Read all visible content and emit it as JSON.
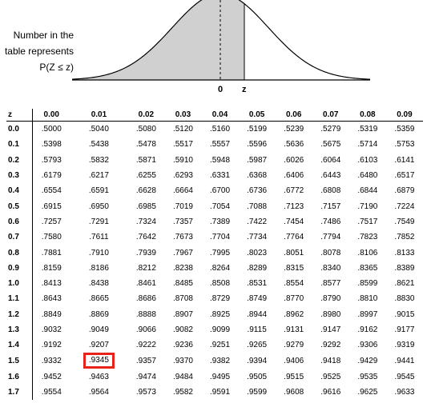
{
  "figure": {
    "caption_lines": [
      "Number in the",
      "table represents",
      "P(Z ≤ z)"
    ],
    "axis_zero": "0",
    "axis_z": "z",
    "shade_color": "#d0d0d0",
    "highlight_color": "#e8231a"
  },
  "table": {
    "header": [
      "z",
      "0.00",
      "0.01",
      "0.02",
      "0.03",
      "0.04",
      "0.05",
      "0.06",
      "0.07",
      "0.08",
      "0.09"
    ],
    "rows": [
      [
        "0.0",
        ".5000",
        ".5040",
        ".5080",
        ".5120",
        ".5160",
        ".5199",
        ".5239",
        ".5279",
        ".5319",
        ".5359"
      ],
      [
        "0.1",
        ".5398",
        ".5438",
        ".5478",
        ".5517",
        ".5557",
        ".5596",
        ".5636",
        ".5675",
        ".5714",
        ".5753"
      ],
      [
        "0.2",
        ".5793",
        ".5832",
        ".5871",
        ".5910",
        ".5948",
        ".5987",
        ".6026",
        ".6064",
        ".6103",
        ".6141"
      ],
      [
        "0.3",
        ".6179",
        ".6217",
        ".6255",
        ".6293",
        ".6331",
        ".6368",
        ".6406",
        ".6443",
        ".6480",
        ".6517"
      ],
      [
        "0.4",
        ".6554",
        ".6591",
        ".6628",
        ".6664",
        ".6700",
        ".6736",
        ".6772",
        ".6808",
        ".6844",
        ".6879"
      ],
      [
        "0.5",
        ".6915",
        ".6950",
        ".6985",
        ".7019",
        ".7054",
        ".7088",
        ".7123",
        ".7157",
        ".7190",
        ".7224"
      ],
      [
        "0.6",
        ".7257",
        ".7291",
        ".7324",
        ".7357",
        ".7389",
        ".7422",
        ".7454",
        ".7486",
        ".7517",
        ".7549"
      ],
      [
        "0.7",
        ".7580",
        ".7611",
        ".7642",
        ".7673",
        ".7704",
        ".7734",
        ".7764",
        ".7794",
        ".7823",
        ".7852"
      ],
      [
        "0.8",
        ".7881",
        ".7910",
        ".7939",
        ".7967",
        ".7995",
        ".8023",
        ".8051",
        ".8078",
        ".8106",
        ".8133"
      ],
      [
        "0.9",
        ".8159",
        ".8186",
        ".8212",
        ".8238",
        ".8264",
        ".8289",
        ".8315",
        ".8340",
        ".8365",
        ".8389"
      ],
      [
        "1.0",
        ".8413",
        ".8438",
        ".8461",
        ".8485",
        ".8508",
        ".8531",
        ".8554",
        ".8577",
        ".8599",
        ".8621"
      ],
      [
        "1.1",
        ".8643",
        ".8665",
        ".8686",
        ".8708",
        ".8729",
        ".8749",
        ".8770",
        ".8790",
        ".8810",
        ".8830"
      ],
      [
        "1.2",
        ".8849",
        ".8869",
        ".8888",
        ".8907",
        ".8925",
        ".8944",
        ".8962",
        ".8980",
        ".8997",
        ".9015"
      ],
      [
        "1.3",
        ".9032",
        ".9049",
        ".9066",
        ".9082",
        ".9099",
        ".9115",
        ".9131",
        ".9147",
        ".9162",
        ".9177"
      ],
      [
        "1.4",
        ".9192",
        ".9207",
        ".9222",
        ".9236",
        ".9251",
        ".9265",
        ".9279",
        ".9292",
        ".9306",
        ".9319"
      ],
      [
        "1.5",
        ".9332",
        ".9345",
        ".9357",
        ".9370",
        ".9382",
        ".9394",
        ".9406",
        ".9418",
        ".9429",
        ".9441"
      ],
      [
        "1.6",
        ".9452",
        ".9463",
        ".9474",
        ".9484",
        ".9495",
        ".9505",
        ".9515",
        ".9525",
        ".9535",
        ".9545"
      ],
      [
        "1.7",
        ".9554",
        ".9564",
        ".9573",
        ".9582",
        ".9591",
        ".9599",
        ".9608",
        ".9616",
        ".9625",
        ".9633"
      ]
    ],
    "highlight": {
      "row": 15,
      "col": 2
    }
  }
}
